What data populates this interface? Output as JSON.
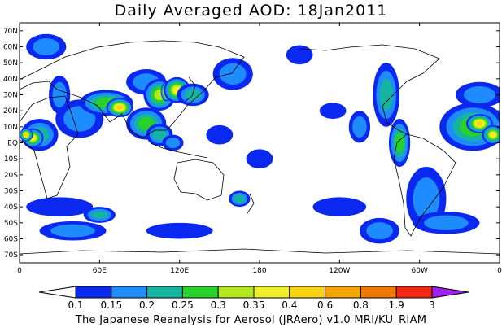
{
  "title": "Daily Averaged AOD: 18Jan2011",
  "footer": "The Japanese Reanalysis for Aerosol (JRAero) v1.0 MRI/KU_RIAM",
  "map": {
    "projection": "equirectangular, centered on 180",
    "lon_range": [
      0,
      360
    ],
    "lat_range": [
      -75,
      75
    ],
    "lat_labels": [
      "70N",
      "60N",
      "50N",
      "40N",
      "30N",
      "20N",
      "10N",
      "EQ",
      "10S",
      "20S",
      "30S",
      "40S",
      "50S",
      "60S",
      "70S"
    ],
    "lat_values": [
      70,
      60,
      50,
      40,
      30,
      20,
      10,
      0,
      -10,
      -20,
      -30,
      -40,
      -50,
      -60,
      -70
    ],
    "lon_labels": [
      "0",
      "60E",
      "120E",
      "180",
      "120W",
      "60W",
      "0"
    ],
    "lon_values": [
      0,
      60,
      120,
      180,
      240,
      300,
      360
    ]
  },
  "colorbar": {
    "labels": [
      "0.1",
      "0.15",
      "0.2",
      "0.25",
      "0.3",
      "0.35",
      "0.4",
      "0.6",
      "0.8",
      "1.9",
      "3"
    ],
    "colors": [
      "#ffffff",
      "#0a28f0",
      "#1e8cff",
      "#14b4a0",
      "#28d228",
      "#b4e61e",
      "#f0f028",
      "#fad214",
      "#f5a500",
      "#f07800",
      "#f02814",
      "#a020f0"
    ]
  },
  "aod_blobs": [
    {
      "lon": 15,
      "lat": 5,
      "rx": 14,
      "ry": 10,
      "level": 3
    },
    {
      "lon": 10,
      "lat": 3,
      "rx": 8,
      "ry": 6,
      "level": 6
    },
    {
      "lon": 5,
      "lat": 5,
      "rx": 5,
      "ry": 4,
      "level": 7
    },
    {
      "lon": 45,
      "lat": 15,
      "rx": 18,
      "ry": 12,
      "level": 2
    },
    {
      "lon": 65,
      "lat": 25,
      "rx": 20,
      "ry": 8,
      "level": 4
    },
    {
      "lon": 75,
      "lat": 22,
      "rx": 10,
      "ry": 6,
      "level": 7
    },
    {
      "lon": 95,
      "lat": 38,
      "rx": 15,
      "ry": 8,
      "level": 2
    },
    {
      "lon": 105,
      "lat": 30,
      "rx": 12,
      "ry": 10,
      "level": 5
    },
    {
      "lon": 110,
      "lat": 32,
      "rx": 4,
      "ry": 6,
      "level": 9
    },
    {
      "lon": 118,
      "lat": 33,
      "rx": 10,
      "ry": 8,
      "level": 6
    },
    {
      "lon": 130,
      "lat": 30,
      "rx": 12,
      "ry": 7,
      "level": 3
    },
    {
      "lon": 160,
      "lat": 43,
      "rx": 15,
      "ry": 10,
      "level": 2
    },
    {
      "lon": 95,
      "lat": 12,
      "rx": 15,
      "ry": 10,
      "level": 4
    },
    {
      "lon": 105,
      "lat": 5,
      "rx": 10,
      "ry": 7,
      "level": 3
    },
    {
      "lon": 115,
      "lat": 0,
      "rx": 8,
      "ry": 5,
      "level": 2
    },
    {
      "lon": 30,
      "lat": -40,
      "rx": 25,
      "ry": 6,
      "level": 1
    },
    {
      "lon": 40,
      "lat": -55,
      "rx": 25,
      "ry": 6,
      "level": 2
    },
    {
      "lon": 60,
      "lat": -45,
      "rx": 12,
      "ry": 5,
      "level": 3
    },
    {
      "lon": 120,
      "lat": -55,
      "rx": 25,
      "ry": 5,
      "level": 1
    },
    {
      "lon": 165,
      "lat": -35,
      "rx": 8,
      "ry": 5,
      "level": 3
    },
    {
      "lon": 240,
      "lat": -40,
      "rx": 20,
      "ry": 6,
      "level": 1
    },
    {
      "lon": 270,
      "lat": -55,
      "rx": 15,
      "ry": 8,
      "level": 2
    },
    {
      "lon": 305,
      "lat": -35,
      "rx": 15,
      "ry": 20,
      "level": 2
    },
    {
      "lon": 320,
      "lat": -50,
      "rx": 25,
      "ry": 7,
      "level": 2
    },
    {
      "lon": 340,
      "lat": 10,
      "rx": 25,
      "ry": 15,
      "level": 4
    },
    {
      "lon": 345,
      "lat": 12,
      "rx": 10,
      "ry": 6,
      "level": 7
    },
    {
      "lon": 355,
      "lat": 5,
      "rx": 8,
      "ry": 6,
      "level": 6
    },
    {
      "lon": 345,
      "lat": 30,
      "rx": 18,
      "ry": 8,
      "level": 2
    },
    {
      "lon": 275,
      "lat": 30,
      "rx": 10,
      "ry": 20,
      "level": 3
    },
    {
      "lon": 285,
      "lat": 0,
      "rx": 8,
      "ry": 15,
      "level": 4
    },
    {
      "lon": 255,
      "lat": 10,
      "rx": 8,
      "ry": 10,
      "level": 2
    },
    {
      "lon": 20,
      "lat": 60,
      "rx": 15,
      "ry": 8,
      "level": 2
    },
    {
      "lon": 30,
      "lat": 30,
      "rx": 8,
      "ry": 12,
      "level": 2
    },
    {
      "lon": 210,
      "lat": 55,
      "rx": 10,
      "ry": 6,
      "level": 1
    },
    {
      "lon": 235,
      "lat": 20,
      "rx": 10,
      "ry": 5,
      "level": 1
    },
    {
      "lon": 150,
      "lat": 5,
      "rx": 10,
      "ry": 6,
      "level": 1
    },
    {
      "lon": 180,
      "lat": -10,
      "rx": 10,
      "ry": 6,
      "level": 1
    }
  ]
}
